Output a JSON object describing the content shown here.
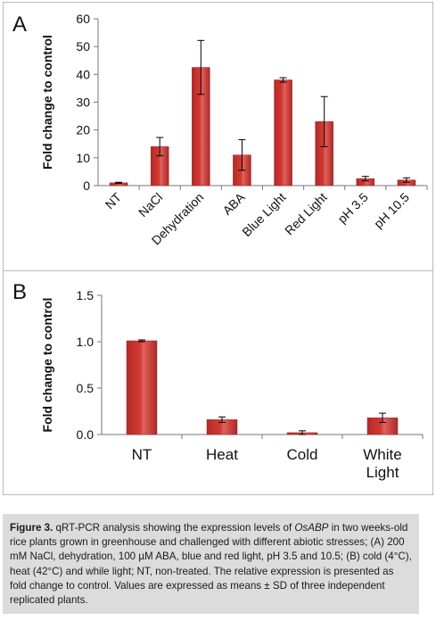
{
  "chart_data": [
    {
      "panel_letter": "A",
      "type": "bar",
      "ylabel": "Fold change to control",
      "ylim": [
        0,
        60
      ],
      "yticks": [
        0,
        10,
        20,
        30,
        40,
        50,
        60
      ],
      "categories": [
        "NT",
        "NaCl",
        "Dehydration",
        "ABA",
        "Blue Light",
        "Red Light",
        "pH 3.5",
        "pH 10.5"
      ],
      "values": [
        1,
        14,
        42.5,
        11,
        38,
        23,
        2.5,
        2
      ],
      "errors": [
        0.2,
        3.3,
        9.7,
        5.5,
        0.8,
        9,
        0.8,
        0.8
      ],
      "bar_color": "#d43a35",
      "grid": false
    },
    {
      "panel_letter": "B",
      "type": "bar",
      "ylabel": "Fold change to control",
      "ylim": [
        0,
        1.5
      ],
      "yticks": [
        "0.0",
        "0.5",
        "1.0",
        "1.5"
      ],
      "categories": [
        "NT",
        "Heat",
        "Cold",
        "White Light"
      ],
      "values": [
        1.01,
        0.16,
        0.02,
        0.18
      ],
      "errors": [
        0.01,
        0.03,
        0.02,
        0.05
      ],
      "bar_color": "#d43a35",
      "grid": false
    }
  ],
  "caption": {
    "label": "Figure 3.",
    "part1": " qRT-PCR analysis showing the expression levels of ",
    "gene": "OsABP",
    "part2": " in two weeks-old rice plants grown in greenhouse and challenged with different abiotic stresses; (A) 200 mM NaCl, dehydration, 100 µM ABA, blue and red light, pH 3.5 and 10.5; (B) cold (4°C), heat (42°C) and while light; NT, non-treated. The relative expression is presented as fold change to control. Values are expressed as means ± SD of three independent replicated plants."
  }
}
